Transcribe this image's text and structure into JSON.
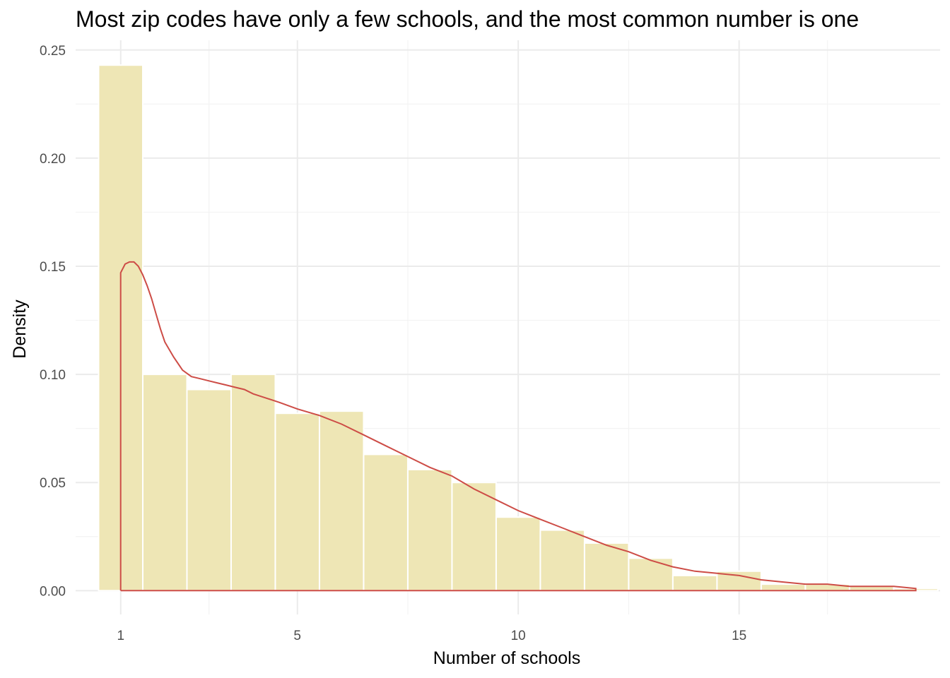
{
  "chart_data": {
    "type": "bar",
    "title": "Most zip codes have only a few schools, and the most common number is one",
    "xlabel": "Number of schools",
    "ylabel": "Density",
    "xlim": [
      -0.02,
      19.55
    ],
    "ylim": [
      -0.011,
      0.2545
    ],
    "x_ticks": [
      1,
      5,
      10,
      15
    ],
    "x_minor_ticks": [
      3,
      7.5,
      12.5,
      17
    ],
    "y_ticks": [
      0.0,
      0.05,
      0.1,
      0.15,
      0.2,
      0.25
    ],
    "y_tick_labels": [
      "0.00",
      "0.05",
      "0.10",
      "0.15",
      "0.20",
      "0.25"
    ],
    "grid": true,
    "colors": {
      "bar_fill": "#eee6b5",
      "density_line": "#cd4c46"
    },
    "bins": [
      {
        "start": 0.5,
        "end": 1.5,
        "density": 0.243
      },
      {
        "start": 1.5,
        "end": 2.5,
        "density": 0.1
      },
      {
        "start": 2.5,
        "end": 3.5,
        "density": 0.093
      },
      {
        "start": 3.5,
        "end": 4.5,
        "density": 0.1
      },
      {
        "start": 4.5,
        "end": 5.5,
        "density": 0.082
      },
      {
        "start": 5.5,
        "end": 6.5,
        "density": 0.083
      },
      {
        "start": 6.5,
        "end": 7.5,
        "density": 0.063
      },
      {
        "start": 7.5,
        "end": 8.5,
        "density": 0.056
      },
      {
        "start": 8.5,
        "end": 9.5,
        "density": 0.05
      },
      {
        "start": 9.5,
        "end": 10.5,
        "density": 0.034
      },
      {
        "start": 10.5,
        "end": 11.5,
        "density": 0.028
      },
      {
        "start": 11.5,
        "end": 12.5,
        "density": 0.022
      },
      {
        "start": 12.5,
        "end": 13.5,
        "density": 0.015
      },
      {
        "start": 13.5,
        "end": 14.5,
        "density": 0.007
      },
      {
        "start": 14.5,
        "end": 15.5,
        "density": 0.009
      },
      {
        "start": 15.5,
        "end": 16.5,
        "density": 0.003
      },
      {
        "start": 16.5,
        "end": 17.5,
        "density": 0.003
      },
      {
        "start": 17.5,
        "end": 18.5,
        "density": 0.002
      },
      {
        "start": 18.5,
        "end": 19.5,
        "density": 0.001
      }
    ],
    "density_curve": {
      "x": [
        1.0,
        1.0,
        1.1,
        1.2,
        1.3,
        1.4,
        1.5,
        1.6,
        1.7,
        1.8,
        1.9,
        2.0,
        2.2,
        2.4,
        2.6,
        2.8,
        3.0,
        3.2,
        3.4,
        3.6,
        3.8,
        4.0,
        4.3,
        4.6,
        5.0,
        5.5,
        6.0,
        6.5,
        7.0,
        7.5,
        8.0,
        8.5,
        9.0,
        9.5,
        10.0,
        10.5,
        11.0,
        11.5,
        12.0,
        12.5,
        13.0,
        13.5,
        14.0,
        14.5,
        15.0,
        15.5,
        16.0,
        16.5,
        17.0,
        17.5,
        18.0,
        18.5,
        19.0,
        19.0,
        1.0
      ],
      "y": [
        0.0,
        0.147,
        0.151,
        0.152,
        0.152,
        0.15,
        0.146,
        0.141,
        0.135,
        0.128,
        0.121,
        0.115,
        0.108,
        0.102,
        0.099,
        0.098,
        0.097,
        0.096,
        0.095,
        0.094,
        0.093,
        0.091,
        0.089,
        0.087,
        0.084,
        0.081,
        0.077,
        0.072,
        0.067,
        0.062,
        0.057,
        0.053,
        0.047,
        0.042,
        0.037,
        0.033,
        0.029,
        0.025,
        0.021,
        0.018,
        0.014,
        0.011,
        0.009,
        0.008,
        0.007,
        0.005,
        0.004,
        0.003,
        0.003,
        0.002,
        0.002,
        0.002,
        0.001,
        0.0,
        0.0
      ]
    }
  }
}
